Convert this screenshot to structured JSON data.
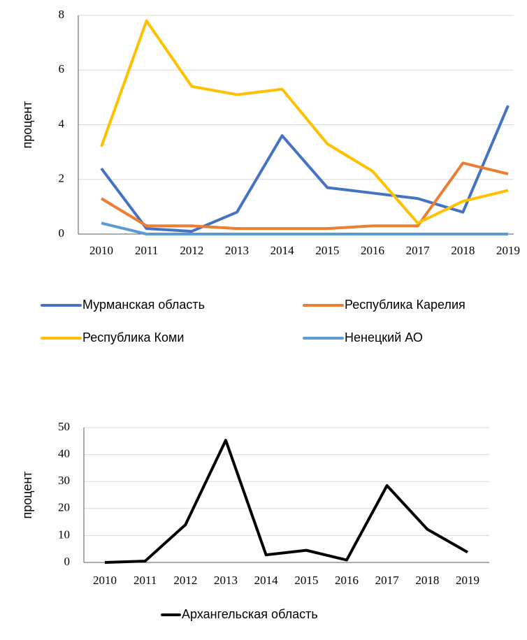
{
  "chart_data": [
    {
      "type": "line",
      "y_label": "процент",
      "categories": [
        "2010",
        "2011",
        "2012",
        "2013",
        "2014",
        "2015",
        "2016",
        "2017",
        "2018",
        "2019"
      ],
      "series": [
        {
          "name": "Мурманская область",
          "color": "#4472c4",
          "values": [
            2.4,
            0.2,
            0.1,
            0.8,
            3.6,
            1.7,
            1.5,
            1.3,
            0.8,
            4.7
          ]
        },
        {
          "name": "Республика Карелия",
          "color": "#ed7d31",
          "values": [
            1.3,
            0.3,
            0.3,
            0.2,
            0.2,
            0.2,
            0.3,
            0.3,
            2.6,
            2.2
          ]
        },
        {
          "name": "Республика Коми",
          "color": "#ffc000",
          "values": [
            3.2,
            7.8,
            5.4,
            5.1,
            5.3,
            3.3,
            2.3,
            0.4,
            1.2,
            1.6
          ]
        },
        {
          "name": "Ненецкий АО",
          "color": "#5b9bd5",
          "values": [
            0.4,
            0,
            0,
            0,
            0,
            0,
            0,
            0,
            0,
            0
          ]
        }
      ],
      "ylim": [
        0,
        8
      ],
      "yticks": [
        0,
        2,
        4,
        6,
        8
      ],
      "grid": true
    },
    {
      "type": "line",
      "y_label": "процент",
      "categories": [
        "2010",
        "2011",
        "2012",
        "2013",
        "2014",
        "2015",
        "2016",
        "2017",
        "2018",
        "2019"
      ],
      "series": [
        {
          "name": "Архангельская область",
          "color": "#000000",
          "values": [
            0,
            0.5,
            14,
            45.3,
            2.8,
            4.5,
            0.9,
            28.5,
            12.3,
            3.8
          ]
        }
      ],
      "ylim": [
        0,
        50
      ],
      "yticks": [
        0,
        10,
        20,
        30,
        40,
        50
      ],
      "grid": true
    }
  ]
}
